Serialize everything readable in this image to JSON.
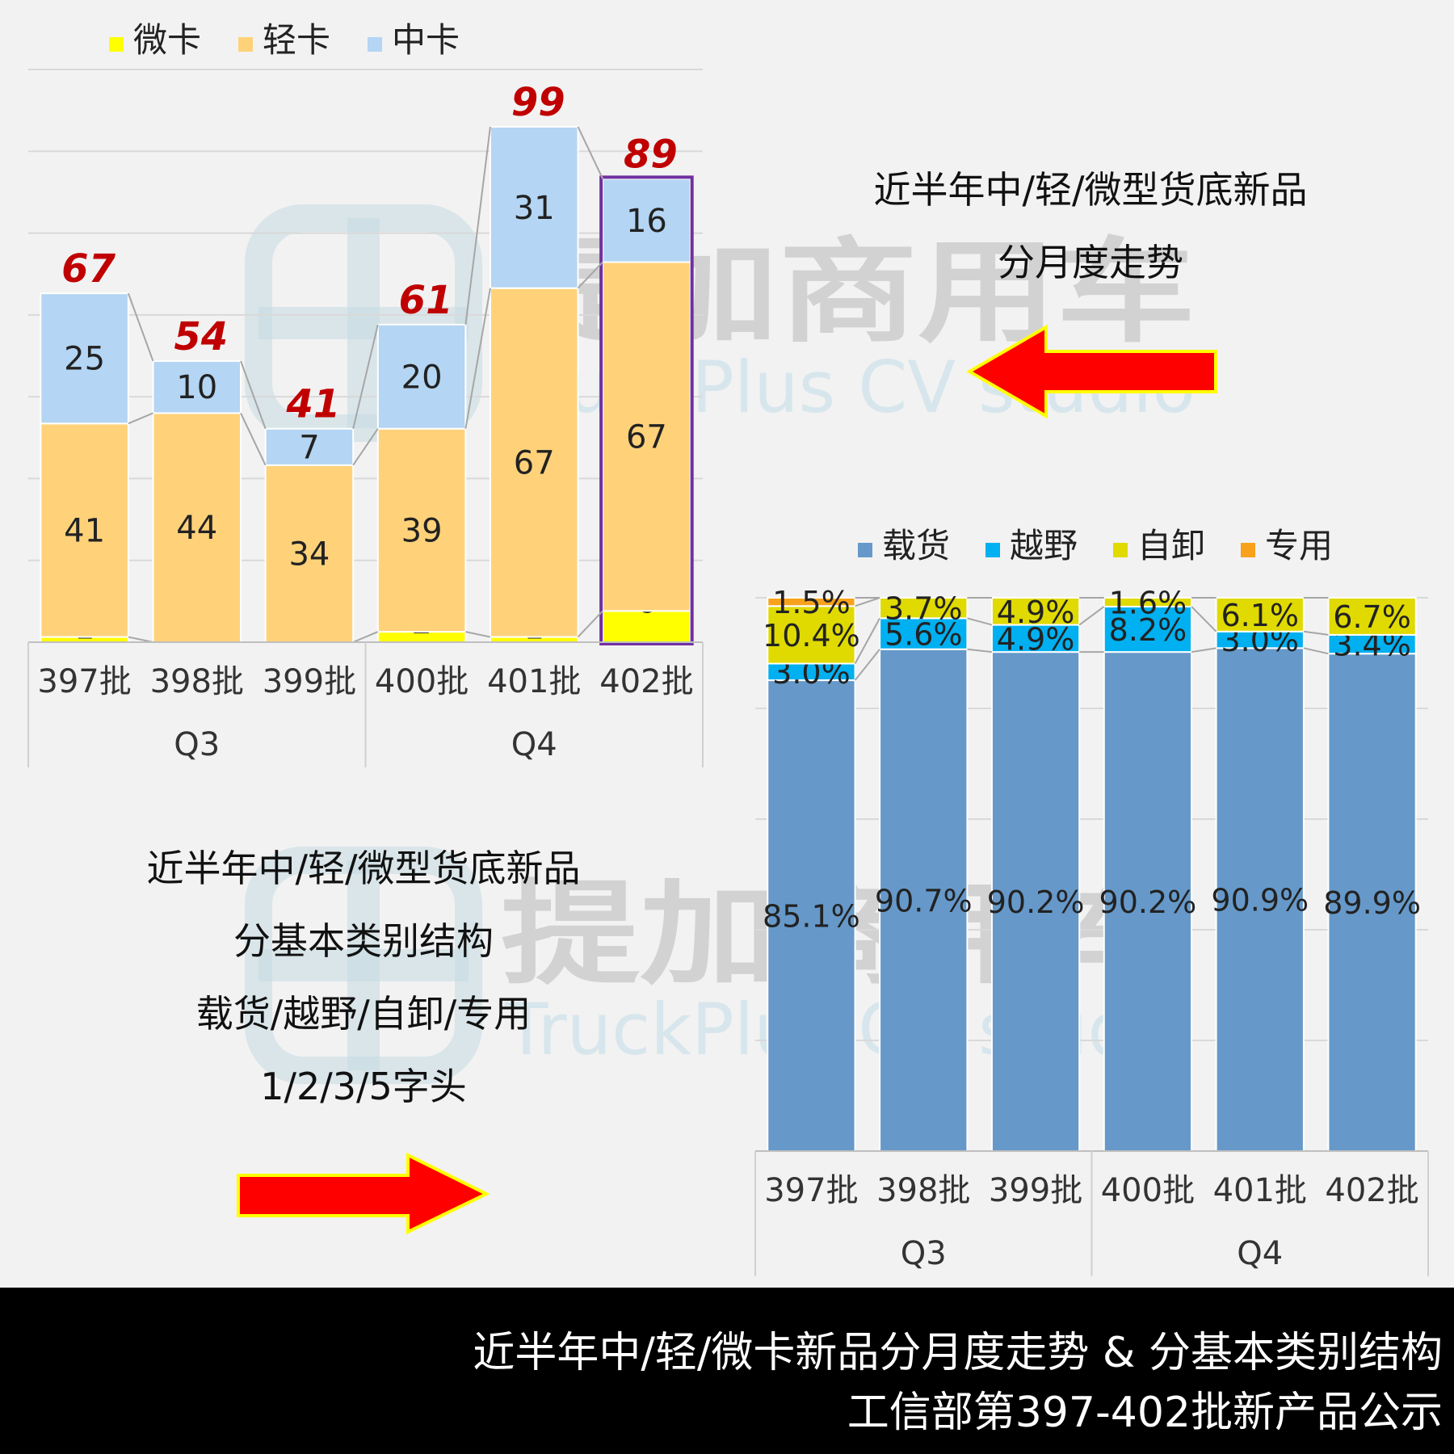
{
  "watermark": {
    "brand_cn": "提加商用车",
    "brand_en": "TruckPlus CV studio"
  },
  "top_right_text": [
    "近半年中/轻/微型货底新品",
    "分月度走势"
  ],
  "bottom_left_text": [
    "近半年中/轻/微型货底新品",
    "分基本类别结构",
    "载货/越野/自卸/专用",
    "1/2/3/5字头"
  ],
  "footer": {
    "line1": "近半年中/轻/微卡新品分月度走势 & 分基本类别结构",
    "line2": "工信部第397-402批新产品公示"
  },
  "colors": {
    "micro": "#ffff00",
    "light": "#ffd27a",
    "medium": "#b4d5f3",
    "total_label": "#c00000",
    "cargo": "#6699c9",
    "offroad": "#00b0f0",
    "dump": "#e0da00",
    "special": "#f8a21c",
    "arrow": "#ff0000",
    "highlight_border": "#7030a0"
  },
  "chart_data": [
    {
      "type": "bar",
      "stacked": true,
      "categories": [
        "397批",
        "398批",
        "399批",
        "400批",
        "401批",
        "402批"
      ],
      "groups": [
        {
          "label": "Q3",
          "categories": [
            "397批",
            "398批",
            "399批"
          ]
        },
        {
          "label": "Q4",
          "categories": [
            "400批",
            "401批",
            "402批"
          ]
        }
      ],
      "series": [
        {
          "name": "微卡",
          "values": [
            1,
            0,
            0,
            2,
            1,
            6
          ],
          "labels": [
            "1",
            "",
            "",
            "2",
            "1",
            "6"
          ]
        },
        {
          "name": "轻卡",
          "values": [
            41,
            44,
            34,
            39,
            67,
            67
          ],
          "labels": [
            "41",
            "44",
            "34",
            "39",
            "67",
            "67"
          ]
        },
        {
          "name": "中卡",
          "values": [
            25,
            10,
            7,
            20,
            31,
            16
          ],
          "labels": [
            "25",
            "10",
            "7",
            "20",
            "31",
            "16"
          ]
        }
      ],
      "totals": [
        "67",
        "54",
        "41",
        "61",
        "99",
        "89"
      ],
      "ylim": [
        0,
        110
      ],
      "grid": true,
      "legend": "top-left",
      "highlight_category": "402批"
    },
    {
      "type": "bar",
      "stacked": true,
      "percent": true,
      "categories": [
        "397批",
        "398批",
        "399批",
        "400批",
        "401批",
        "402批"
      ],
      "groups": [
        {
          "label": "Q3",
          "categories": [
            "397批",
            "398批",
            "399批"
          ]
        },
        {
          "label": "Q4",
          "categories": [
            "400批",
            "401批",
            "402批"
          ]
        }
      ],
      "series": [
        {
          "name": "载货",
          "values": [
            85.1,
            90.7,
            90.2,
            90.2,
            90.9,
            89.9
          ],
          "labels": [
            "85.1%",
            "90.7%",
            "90.2%",
            "90.2%",
            "90.9%",
            "89.9%"
          ]
        },
        {
          "name": "越野",
          "values": [
            3.0,
            5.6,
            4.9,
            8.2,
            3.0,
            3.4
          ],
          "labels": [
            "3.0%",
            "5.6%",
            "4.9%",
            "8.2%",
            "3.0%",
            "3.4%"
          ]
        },
        {
          "name": "自卸",
          "values": [
            10.4,
            3.7,
            4.9,
            1.6,
            6.1,
            6.7
          ],
          "labels": [
            "10.4%",
            "3.7%",
            "4.9%",
            "1.6%",
            "6.1%",
            "6.7%"
          ]
        },
        {
          "name": "专用",
          "values": [
            1.5,
            0,
            0,
            0,
            0,
            0
          ],
          "labels": [
            "1.5%",
            "",
            "",
            "",
            "",
            ""
          ]
        }
      ],
      "ylim": [
        0,
        100
      ],
      "grid": true,
      "legend": "top"
    }
  ]
}
